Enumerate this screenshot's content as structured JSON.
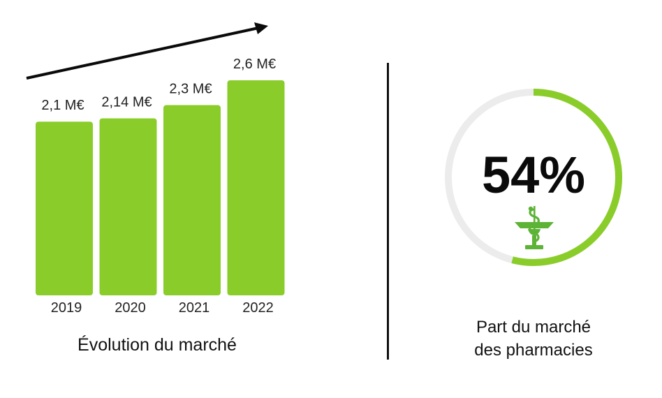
{
  "chart_data": [
    {
      "type": "bar",
      "categories": [
        "2019",
        "2020",
        "2021",
        "2022"
      ],
      "values": [
        2.1,
        2.14,
        2.3,
        2.6
      ],
      "value_labels": [
        "2,1 M€",
        "2,14 M€",
        "2,3 M€",
        "2,6 M€"
      ],
      "title": "Évolution du marché",
      "ylim": [
        0,
        2.6
      ],
      "trend_arrow": true,
      "bar_color": "#8acd2a",
      "grid": false
    },
    {
      "type": "pie",
      "style": "donut",
      "value": 54,
      "value_label": "54%",
      "caption": [
        "Part du marché",
        "des pharmacies"
      ],
      "fill_color": "#8acd2a",
      "track_color": "#ececec",
      "icon": "pharmacy-caduceus-icon",
      "icon_color": "#5cb335"
    }
  ]
}
